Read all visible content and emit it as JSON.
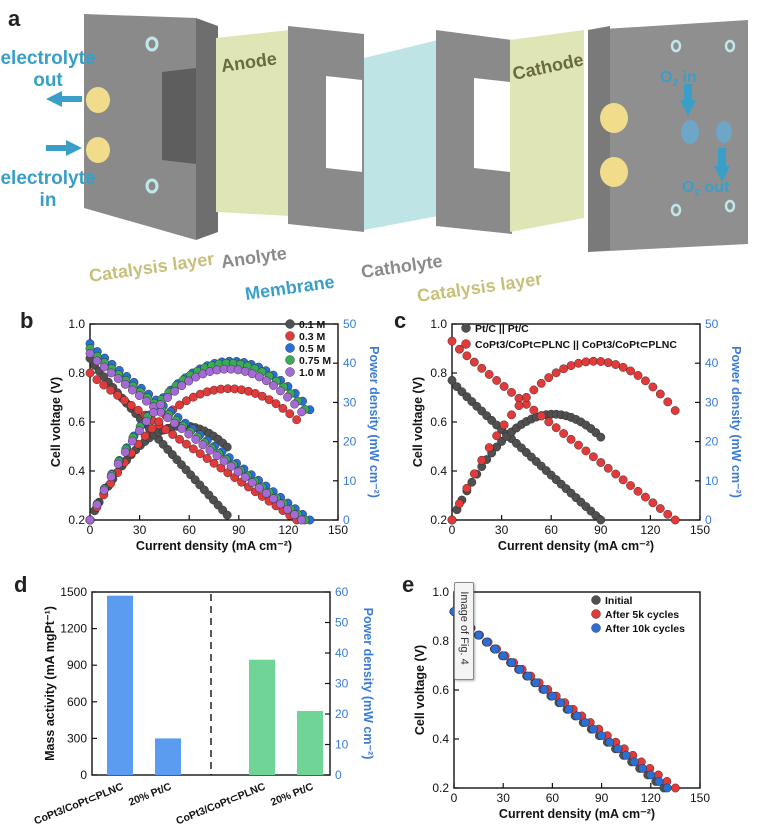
{
  "panel_labels": {
    "a": "a",
    "b": "b",
    "c": "c",
    "d": "d",
    "e": "e"
  },
  "panel_a": {
    "electrolyte_out": [
      "electrolyte",
      "out"
    ],
    "electrolyte_in": [
      "electrolyte",
      "in"
    ],
    "anode": "Anode",
    "cathode": "Cathode",
    "o2_in": "O2 in",
    "o2_out": "O2 out",
    "bottom_labels": [
      "Catalysis layer",
      "Anolyte",
      "Membrane",
      "Catholyte",
      "Catalysis layer"
    ],
    "colors": {
      "slab": "#8f8f8f",
      "catalyst": "#dfe5b4",
      "membrane": "#bfe4e6",
      "cyan_text": "#3a9fc8",
      "tan_text": "#c7c07a",
      "grey_text": "#8a8a8a",
      "cap": "#f0dc8a"
    }
  },
  "tooltip": "Image of Fig. 4",
  "chart_data": [
    {
      "id": "b",
      "type": "line",
      "xlabel": "Current density (mA cm⁻²)",
      "ylabel": "Cell voltage (V)",
      "y2label": "Power density (mW cm⁻²)",
      "xlim": [
        0,
        150
      ],
      "ylim": [
        0.2,
        1.0
      ],
      "y2lim": [
        0,
        50
      ],
      "xticks": [
        0,
        30,
        60,
        90,
        120,
        150
      ],
      "yticks": [
        0.2,
        0.4,
        0.6,
        0.8,
        1.0
      ],
      "y2ticks": [
        0,
        10,
        20,
        30,
        40,
        50
      ],
      "legend": "top-right",
      "series": [
        {
          "name": "0.1 M",
          "color": "#505050",
          "v": [
            0.86,
            0.22
          ],
          "jmax": 83,
          "pmax": 24,
          "jpk": 65
        },
        {
          "name": "0.3 M",
          "color": "#e03a3a",
          "v": [
            0.8,
            0.2
          ],
          "jmax": 125,
          "pmax": 33.5,
          "jpk": 80
        },
        {
          "name": "0.5 M",
          "color": "#2a6fd6",
          "v": [
            0.92,
            0.2
          ],
          "jmax": 133,
          "pmax": 40.5,
          "jpk": 82
        },
        {
          "name": "0.75 M",
          "color": "#3aaa55",
          "v": [
            0.9,
            0.2
          ],
          "jmax": 130,
          "pmax": 40,
          "jpk": 84
        },
        {
          "name": "1.0 M",
          "color": "#a56ad6",
          "v": [
            0.88,
            0.2
          ],
          "jmax": 128,
          "pmax": 38.5,
          "jpk": 82
        }
      ]
    },
    {
      "id": "c",
      "type": "line",
      "xlabel": "Current density (mA cm⁻²)",
      "ylabel": "Cell voltage (V)",
      "y2label": "Power density (mW cm⁻²)",
      "xlim": [
        0,
        150
      ],
      "ylim": [
        0.2,
        1.0
      ],
      "y2lim": [
        0,
        50
      ],
      "xticks": [
        0,
        30,
        60,
        90,
        120,
        150
      ],
      "yticks": [
        0.2,
        0.4,
        0.6,
        0.8,
        1.0
      ],
      "y2ticks": [
        0,
        10,
        20,
        30,
        40,
        50
      ],
      "legend": "top-left",
      "series": [
        {
          "name": "Pt/C || Pt/C",
          "color": "#505050",
          "v": [
            0.77,
            0.2
          ],
          "jmax": 90,
          "pmax": 27,
          "jpk": 60
        },
        {
          "name": "CoPt3/CoPt⊂PLNC || CoPt3/CoPt⊂PLNC",
          "color": "#e03a3a",
          "v": [
            0.93,
            0.2
          ],
          "jmax": 135,
          "pmax": 40.5,
          "jpk": 85
        }
      ]
    },
    {
      "id": "d",
      "type": "bar",
      "ylabel": "Mass activity (mA mgPt⁻¹)",
      "y2label": "Power density (mW cm⁻²)",
      "ylim": [
        0,
        1500
      ],
      "y2lim": [
        0,
        60
      ],
      "yticks": [
        0,
        300,
        600,
        900,
        1200,
        1500
      ],
      "y2ticks": [
        0,
        10,
        20,
        30,
        40,
        50,
        60
      ],
      "categories": [
        "CoPt3/CoPt⊂PLNC",
        "20% Pt/C",
        "CoPt3/CoPt⊂PLNC",
        "20% Pt/C"
      ],
      "mass_activity": [
        1470,
        300
      ],
      "power_density": [
        37.8,
        21
      ],
      "colors": [
        "#5b9bf0",
        "#5b9bf0",
        "#6fd496",
        "#6fd496"
      ]
    },
    {
      "id": "e",
      "type": "line",
      "xlabel": "Current density (mA cm⁻²)",
      "ylabel": "Cell voltage (V)",
      "xlim": [
        0,
        150
      ],
      "ylim": [
        0.2,
        1.0
      ],
      "xticks": [
        0,
        30,
        60,
        90,
        120,
        150
      ],
      "yticks": [
        0.2,
        0.4,
        0.6,
        0.8,
        1.0
      ],
      "legend": "top-right",
      "series": [
        {
          "name": "Initial",
          "color": "#505050",
          "v": [
            0.92,
            0.2
          ],
          "jmax": 128
        },
        {
          "name": "After 5k cycles",
          "color": "#e03a3a",
          "v": [
            0.92,
            0.2
          ],
          "jmax": 135
        },
        {
          "name": "After 10k cycles",
          "color": "#2a6fd6",
          "v": [
            0.92,
            0.2
          ],
          "jmax": 130
        }
      ]
    }
  ]
}
